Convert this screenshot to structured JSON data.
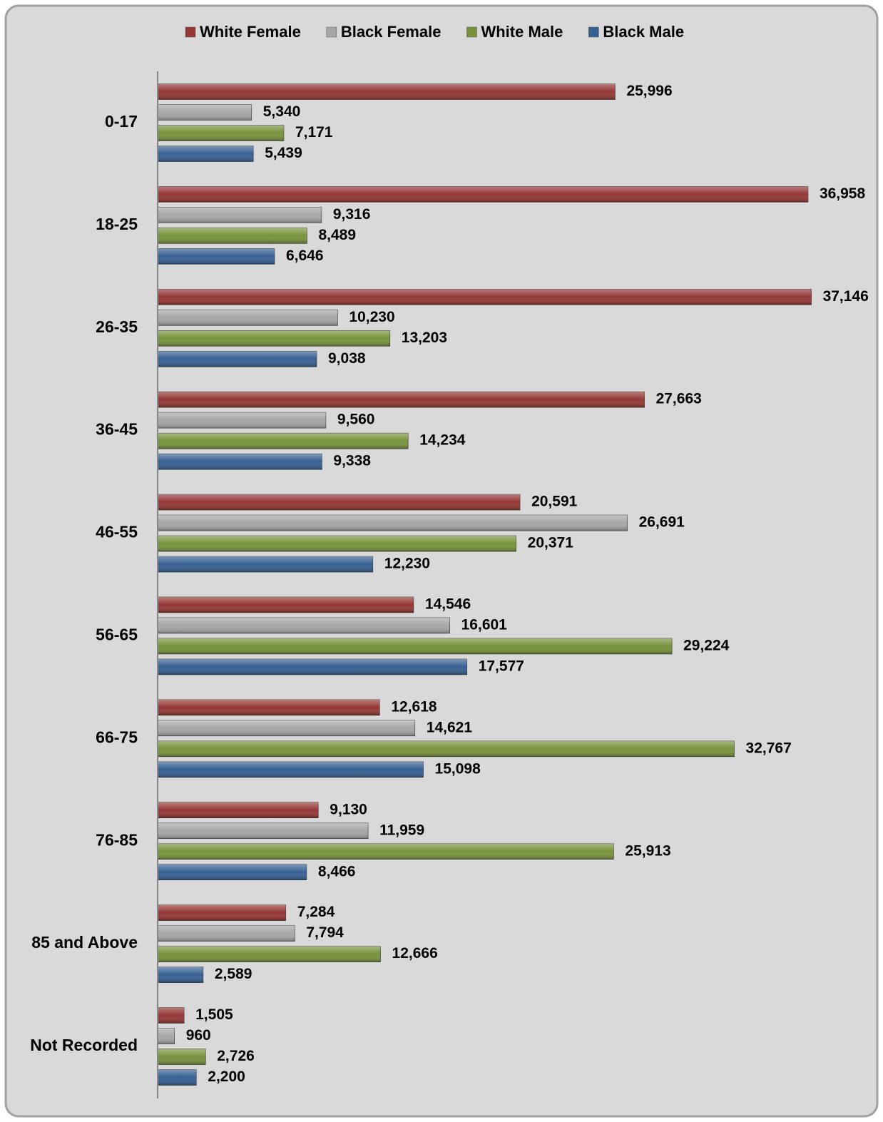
{
  "chart_data": {
    "type": "hbar",
    "categories": [
      "0-17",
      "18-25",
      "26-35",
      "36-45",
      "46-55",
      "56-65",
      "66-75",
      "76-85",
      "85 and Above",
      "Not Recorded"
    ],
    "series": [
      {
        "name": "White Female",
        "color": "#953735",
        "values": [
          25996,
          36958,
          37146,
          27663,
          20591,
          14546,
          12618,
          9130,
          7284,
          1505
        ],
        "value_labels": [
          "25,996",
          "36,958",
          "37,146",
          "27,663",
          "20,591",
          "14,546",
          "12,618",
          "9,130",
          "7,284",
          "1,505"
        ]
      },
      {
        "name": "Black Female",
        "color": "#a6a6a6",
        "values": [
          5340,
          9316,
          10230,
          9560,
          26691,
          16601,
          14621,
          11959,
          7794,
          960
        ],
        "value_labels": [
          "5,340",
          "9,316",
          "10,230",
          "9,560",
          "26,691",
          "16,601",
          "14,621",
          "11,959",
          "7,794",
          "960"
        ]
      },
      {
        "name": "White Male",
        "color": "#77933c",
        "values": [
          7171,
          8489,
          13203,
          14234,
          20371,
          29224,
          32767,
          25913,
          12666,
          2726
        ],
        "value_labels": [
          "7,171",
          "8,489",
          "13,203",
          "14,234",
          "20,371",
          "29,224",
          "32,767",
          "25,913",
          "12,666",
          "2,726"
        ]
      },
      {
        "name": "Black Male",
        "color": "#376092",
        "values": [
          5439,
          6646,
          9038,
          9338,
          12230,
          17577,
          15098,
          8466,
          2589,
          2200
        ],
        "value_labels": [
          "5,439",
          "6,646",
          "9,038",
          "9,338",
          "12,230",
          "17,577",
          "15,098",
          "8,466",
          "2,589",
          "2,200"
        ]
      }
    ],
    "xlim": [
      0,
      40000
    ],
    "legend": "top"
  }
}
